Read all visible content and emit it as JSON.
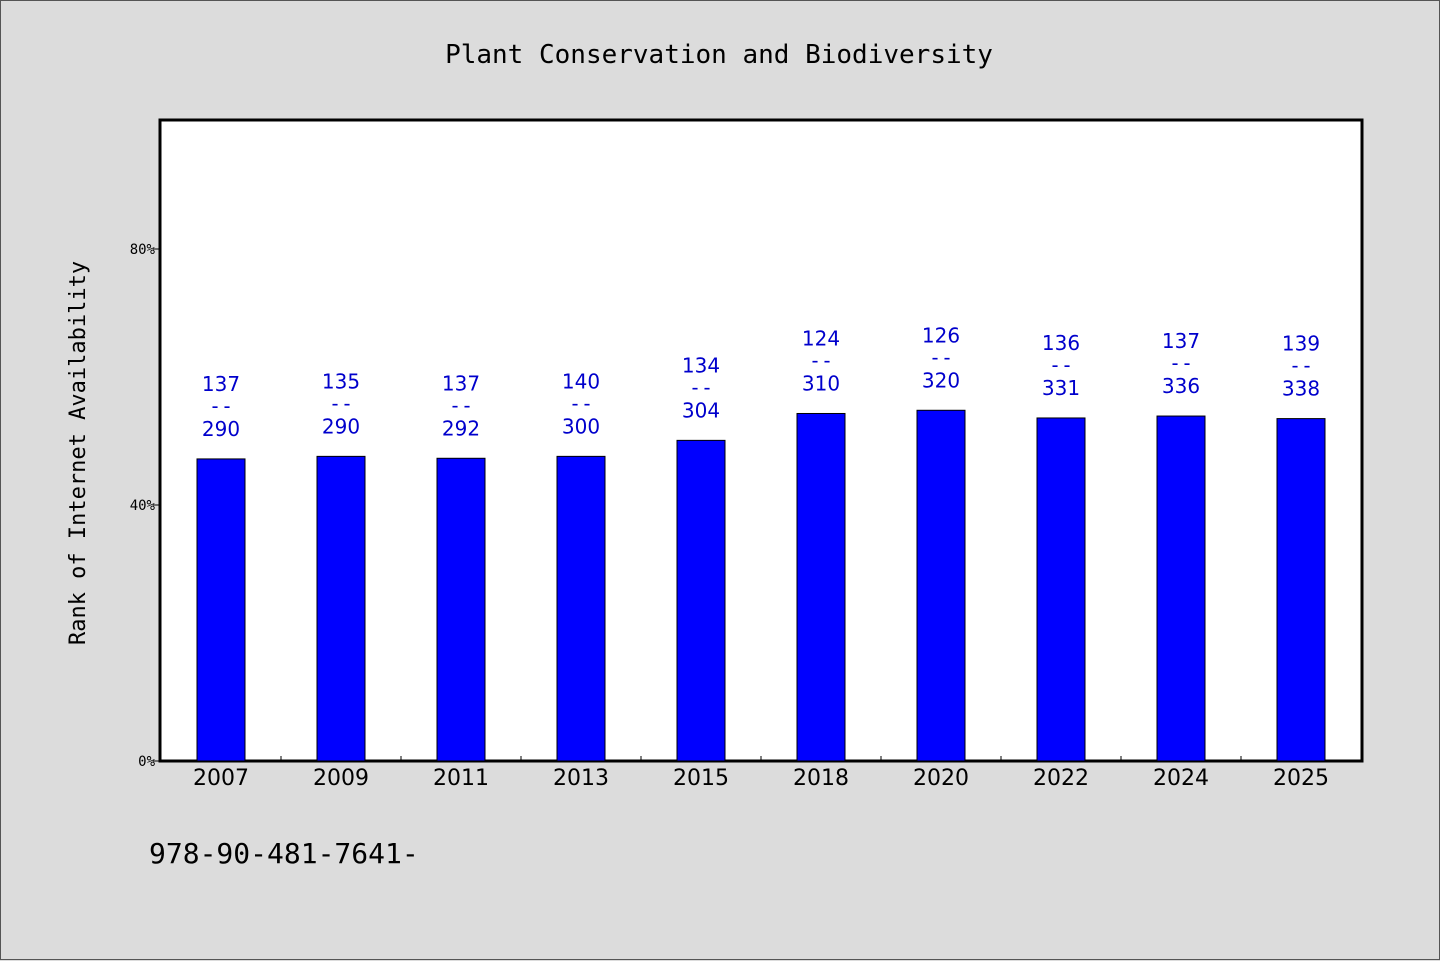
{
  "chart_data": {
    "type": "bar",
    "title": "Plant Conservation and Biodiversity",
    "ylabel": "Rank of Internet Availability",
    "xlabel": "",
    "categories": [
      "2007",
      "2009",
      "2011",
      "2013",
      "2015",
      "2018",
      "2020",
      "2022",
      "2024",
      "2025"
    ],
    "values": [
      47.2,
      47.6,
      47.3,
      47.6,
      50.1,
      54.3,
      54.8,
      53.6,
      53.9,
      53.5
    ],
    "data_labels": [
      {
        "rank": "137",
        "sep": "--",
        "total": "290"
      },
      {
        "rank": "135",
        "sep": "--",
        "total": "290"
      },
      {
        "rank": "137",
        "sep": "--",
        "total": "292"
      },
      {
        "rank": "140",
        "sep": "--",
        "total": "300"
      },
      {
        "rank": "134",
        "sep": "--",
        "total": "304"
      },
      {
        "rank": "124",
        "sep": "--",
        "total": "310"
      },
      {
        "rank": "126",
        "sep": "--",
        "total": "320"
      },
      {
        "rank": "136",
        "sep": "--",
        "total": "331"
      },
      {
        "rank": "137",
        "sep": "--",
        "total": "336"
      },
      {
        "rank": "139",
        "sep": "--",
        "total": "338"
      }
    ],
    "ylim": [
      0,
      100
    ],
    "yticks": [
      {
        "value": 0,
        "label": "0%"
      },
      {
        "value": 40,
        "label": "40%"
      },
      {
        "value": 80,
        "label": "80%"
      }
    ],
    "grid": false,
    "bar_color": "#0000ff",
    "label_color": "#0000cc",
    "plot_background": "#ffffff",
    "page_background": "#dcdcdc"
  },
  "footnote": "978-90-481-7641-"
}
